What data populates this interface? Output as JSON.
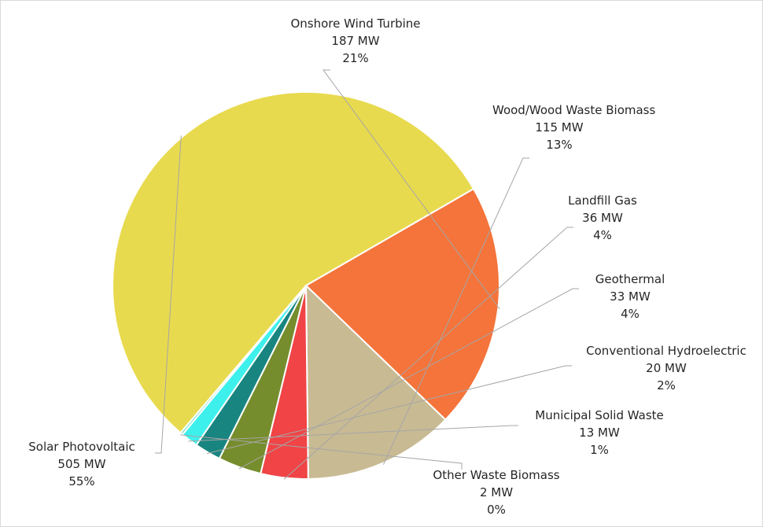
{
  "chart_data": {
    "type": "pie",
    "slices": [
      {
        "name": "Onshore Wind Turbine",
        "value": 187,
        "value_label": "187 MW",
        "percent_label": "21%",
        "color": "#F4743B"
      },
      {
        "name": "Wood/Wood Waste Biomass",
        "value": 115,
        "value_label": "115 MW",
        "percent_label": "13%",
        "color": "#C8BA93"
      },
      {
        "name": "Landfill Gas",
        "value": 36,
        "value_label": "36 MW",
        "percent_label": "4%",
        "color": "#F04446"
      },
      {
        "name": "Geothermal",
        "value": 33,
        "value_label": "33  MW",
        "percent_label": "4%",
        "color": "#768D2D"
      },
      {
        "name": "Conventional Hydroelectric",
        "value": 20,
        "value_label": "20 MW",
        "percent_label": "2%",
        "color": "#198580"
      },
      {
        "name": "Municipal Solid Waste",
        "value": 13,
        "value_label": "13 MW",
        "percent_label": "1%",
        "color": "#3EF0EC"
      },
      {
        "name": "Other Waste Biomass",
        "value": 2,
        "value_label": "2 MW",
        "percent_label": "0%",
        "color": "#7FDFCC"
      },
      {
        "name": "Solar Photovoltaic",
        "value": 505,
        "value_label": "505 MW",
        "percent_label": "55%",
        "color": "#E8DA4E"
      }
    ],
    "start_angle_deg": -30,
    "direction": "clockwise",
    "legend": "none",
    "title": ""
  }
}
